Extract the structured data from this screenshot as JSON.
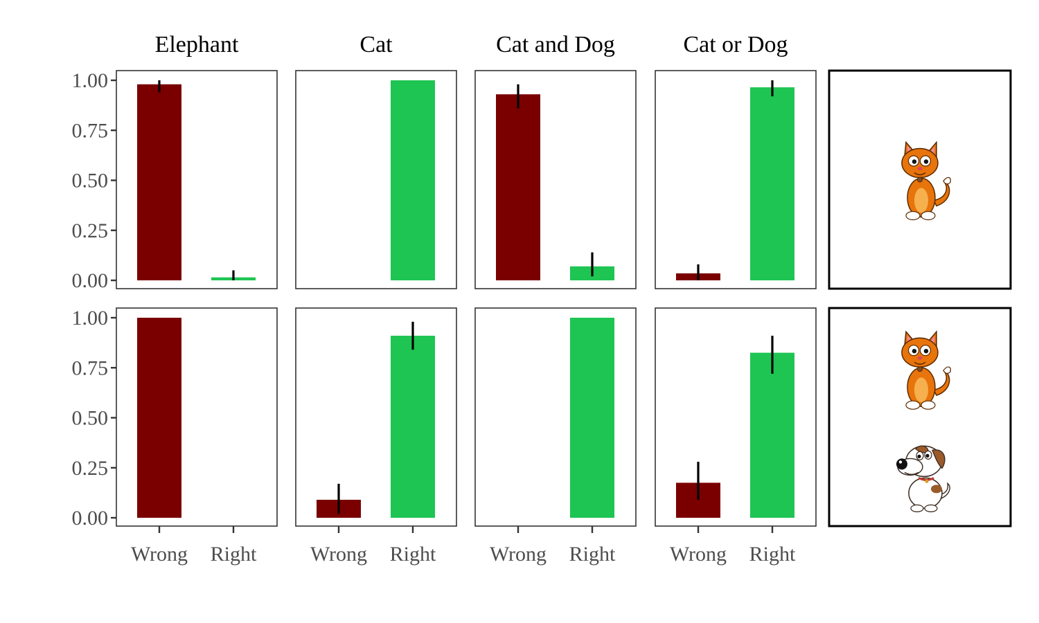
{
  "chart_data": {
    "type": "bar",
    "facet_columns": [
      "Elephant",
      "Cat",
      "Cat and Dog",
      "Cat or Dog"
    ],
    "categories": [
      "Wrong",
      "Right"
    ],
    "ylim": [
      0,
      1
    ],
    "y_ticks": [
      "0.00",
      "0.25",
      "0.50",
      "0.75",
      "1.00"
    ],
    "colors": {
      "Wrong": "#7a0000",
      "Right": "#1ec553"
    },
    "grid": false,
    "rows": [
      {
        "scene": "cat",
        "scene_icons": [
          "cat-icon"
        ],
        "panels": [
          {
            "column": "Elephant",
            "values": [
              0.98,
              0.015
            ],
            "errors": [
              [
                0.94,
                1.0
              ],
              [
                0.0,
                0.05
              ]
            ]
          },
          {
            "column": "Cat",
            "values": [
              0.0,
              1.0
            ],
            "errors": [
              null,
              null
            ]
          },
          {
            "column": "Cat and Dog",
            "values": [
              0.93,
              0.07
            ],
            "errors": [
              [
                0.86,
                0.98
              ],
              [
                0.02,
                0.14
              ]
            ]
          },
          {
            "column": "Cat or Dog",
            "values": [
              0.035,
              0.965
            ],
            "errors": [
              [
                0.0,
                0.08
              ],
              [
                0.92,
                1.0
              ]
            ]
          }
        ]
      },
      {
        "scene": "cat and dog",
        "scene_icons": [
          "cat-icon",
          "dog-icon"
        ],
        "panels": [
          {
            "column": "Elephant",
            "values": [
              1.0,
              0.0
            ],
            "errors": [
              null,
              null
            ]
          },
          {
            "column": "Cat",
            "values": [
              0.09,
              0.91
            ],
            "errors": [
              [
                0.02,
                0.17
              ],
              [
                0.84,
                0.98
              ]
            ]
          },
          {
            "column": "Cat and Dog",
            "values": [
              0.0,
              1.0
            ],
            "errors": [
              null,
              null
            ]
          },
          {
            "column": "Cat or Dog",
            "values": [
              0.175,
              0.825
            ],
            "errors": [
              [
                0.09,
                0.28
              ],
              [
                0.72,
                0.91
              ]
            ]
          }
        ]
      }
    ]
  }
}
